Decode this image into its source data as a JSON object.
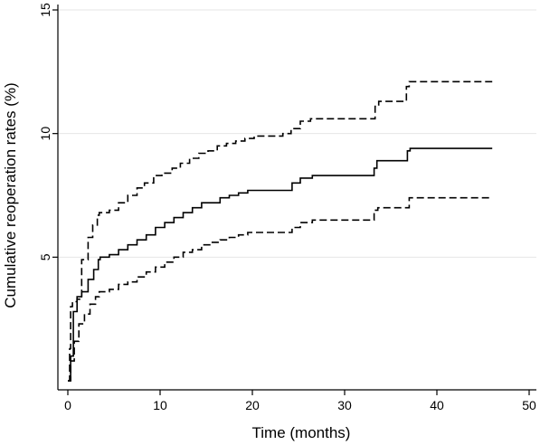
{
  "chart_data": {
    "type": "line",
    "title": "",
    "xlabel": "Time (months)",
    "ylabel": "Cumulative reoperation rates (%)",
    "xlim": [
      0,
      50
    ],
    "ylim": [
      0,
      15
    ],
    "x_ticks": [
      0,
      10,
      20,
      30,
      40,
      50
    ],
    "y_ticks": [
      5,
      10,
      15
    ],
    "grid": "horizontal",
    "legend": "none",
    "colors": {
      "line": "#000000",
      "grid": "#e6e6e6",
      "background": "#ffffff"
    },
    "series": [
      {
        "style": "dashed",
        "x": [
          0,
          0.2,
          0.3,
          0.5,
          1.0,
          1.5,
          2.2,
          2.7,
          3.2,
          3.4,
          4.5,
          5.5,
          6.5,
          7.5,
          8.3,
          9.3,
          10.2,
          11.3,
          12.2,
          13.2,
          14.2,
          15.2,
          16.2,
          17.2,
          18.2,
          19.2,
          20.2,
          22.3,
          23.3,
          24.2,
          25.2,
          26.3,
          33.3,
          33.7,
          36.7,
          37.0,
          46
        ],
        "y": [
          0,
          1.3,
          3.0,
          3.2,
          3.3,
          4.9,
          5.8,
          6.3,
          6.7,
          6.8,
          6.9,
          7.2,
          7.5,
          7.8,
          8.0,
          8.3,
          8.4,
          8.6,
          8.8,
          9.0,
          9.2,
          9.3,
          9.5,
          9.6,
          9.7,
          9.8,
          9.9,
          9.9,
          10.0,
          10.2,
          10.5,
          10.6,
          11.1,
          11.3,
          11.9,
          12.1,
          12.1
        ]
      },
      {
        "style": "solid",
        "x": [
          0,
          0.3,
          0.6,
          1.0,
          1.5,
          2.2,
          2.8,
          3.3,
          3.5,
          4.5,
          5.5,
          6.5,
          7.5,
          8.5,
          9.5,
          10.5,
          11.5,
          12.5,
          13.5,
          14.5,
          16.5,
          17.5,
          18.5,
          19.5,
          24.3,
          25.2,
          26.5,
          33.2,
          33.5,
          36.8,
          37.1,
          46
        ],
        "y": [
          0,
          1.0,
          2.8,
          3.4,
          3.6,
          4.1,
          4.5,
          4.9,
          5.0,
          5.1,
          5.3,
          5.5,
          5.7,
          5.9,
          6.2,
          6.4,
          6.6,
          6.8,
          7.0,
          7.2,
          7.4,
          7.5,
          7.6,
          7.7,
          8.0,
          8.2,
          8.3,
          8.6,
          8.9,
          9.3,
          9.4,
          9.4
        ]
      },
      {
        "style": "dashed",
        "x": [
          0,
          0.3,
          0.7,
          1.2,
          1.8,
          2.4,
          3.0,
          3.4,
          4.5,
          5.5,
          6.5,
          7.5,
          8.5,
          9.5,
          10.5,
          11.5,
          12.5,
          13.5,
          14.5,
          15.5,
          16.5,
          17.5,
          18.5,
          19.5,
          20.5,
          24.3,
          25.2,
          26.5,
          33.2,
          33.6,
          37.0,
          46
        ],
        "y": [
          0,
          0.8,
          1.6,
          2.3,
          2.7,
          3.1,
          3.4,
          3.6,
          3.7,
          3.9,
          4.0,
          4.2,
          4.4,
          4.6,
          4.8,
          5.0,
          5.2,
          5.3,
          5.5,
          5.6,
          5.7,
          5.8,
          5.9,
          6.0,
          6.0,
          6.2,
          6.4,
          6.5,
          6.9,
          7.0,
          7.4,
          7.4
        ]
      }
    ]
  }
}
